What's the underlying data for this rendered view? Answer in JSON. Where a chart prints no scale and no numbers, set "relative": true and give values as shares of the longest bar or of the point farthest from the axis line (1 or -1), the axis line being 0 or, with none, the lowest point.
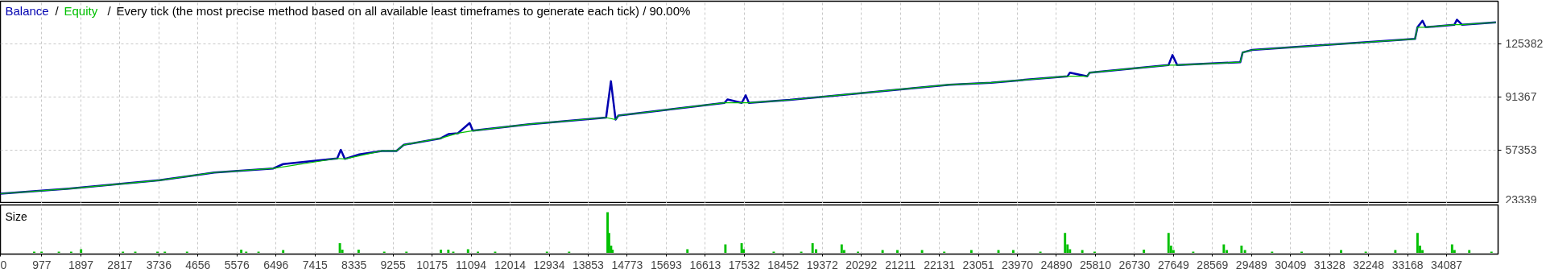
{
  "chart_data": [
    {
      "type": "line",
      "title": "Every tick (the most precise method based on all available least timeframes to generate each tick) / 90.00%",
      "annotations": [
        "/",
        "/"
      ],
      "legend": "top left",
      "grid": true,
      "tick_labels": "y",
      "xlim": [
        0,
        35300
      ],
      "ylim": [
        23339,
        152400
      ],
      "yticks": [
        23339,
        57353,
        91367,
        125382
      ],
      "xticks": [
        0,
        977,
        1897,
        2817,
        3736,
        4656,
        5576,
        6496,
        7415,
        8335,
        9255,
        10175,
        11094,
        12014,
        12934,
        13853,
        14773,
        15693,
        16613,
        17532,
        18452,
        19372,
        20292,
        21211,
        22131,
        23051,
        23970,
        24890,
        25810,
        26730,
        27649,
        28569,
        29489,
        30409,
        31328,
        32248,
        33168,
        34087
      ],
      "series": [
        {
          "name": "Balance",
          "color": "#0000b0",
          "x": [
            0,
            1617,
            3755,
            5038,
            6432,
            6664,
            7938,
            8024,
            8117,
            8458,
            8988,
            9333,
            9510,
            10382,
            10559,
            10783,
            11060,
            11135,
            12474,
            14276,
            14390,
            14500,
            14566,
            17066,
            17140,
            17474,
            17567,
            17641,
            18608,
            22364,
            23350,
            25153,
            25209,
            25617,
            25673,
            27532,
            27625,
            27737,
            29224,
            29280,
            29503,
            33342,
            33400,
            33519,
            33593,
            34271,
            34329,
            34448,
            35250
          ],
          "values": [
            29500,
            32700,
            38100,
            43000,
            45600,
            48400,
            52000,
            57500,
            51700,
            54600,
            56800,
            56800,
            60700,
            64900,
            67500,
            68100,
            74600,
            69700,
            73900,
            78100,
            101300,
            76800,
            79400,
            87500,
            89700,
            87500,
            92300,
            87500,
            89400,
            99100,
            100400,
            104500,
            106800,
            104500,
            106800,
            111600,
            118000,
            111600,
            113500,
            119700,
            121300,
            128300,
            135800,
            139900,
            135800,
            137400,
            140600,
            137400,
            138900
          ]
        },
        {
          "name": "Equity",
          "color": "#00c000",
          "x": [
            0,
            1617,
            3755,
            5038,
            6432,
            7938,
            8117,
            8988,
            9333,
            9510,
            10382,
            10783,
            11135,
            12474,
            14276,
            14500,
            14566,
            17066,
            17474,
            17641,
            18608,
            22364,
            23350,
            25153,
            25617,
            25673,
            27532,
            27737,
            29224,
            29280,
            29503,
            33342,
            33400,
            33593,
            34271,
            34448,
            35250
          ],
          "values": [
            29500,
            32700,
            38100,
            43000,
            45600,
            52000,
            51700,
            56800,
            56800,
            60700,
            64900,
            68100,
            69700,
            73900,
            78100,
            76800,
            79400,
            87500,
            87500,
            87500,
            89400,
            99100,
            100400,
            104500,
            104500,
            106800,
            111600,
            111600,
            113500,
            119700,
            121300,
            128300,
            135800,
            135800,
            137400,
            137400,
            138900
          ]
        }
      ]
    },
    {
      "type": "bar",
      "title": "Size",
      "relative": true,
      "grid": "x",
      "tick_labels": "x",
      "color": "#00c000",
      "xlim": [
        0,
        35300
      ],
      "xticks": [
        0,
        977,
        1897,
        2817,
        3736,
        4656,
        5576,
        6496,
        7415,
        8335,
        9255,
        10175,
        11094,
        12014,
        12934,
        13853,
        14773,
        15693,
        16613,
        17532,
        18452,
        19372,
        20292,
        21211,
        22131,
        23051,
        23970,
        24890,
        25810,
        26730,
        27649,
        28569,
        29489,
        30409,
        31328,
        32248,
        33168,
        34087
      ],
      "x": [
        797,
        971,
        1378,
        1668,
        1901,
        2888,
        3179,
        3702,
        3876,
        4399,
        5677,
        5793,
        6084,
        6665,
        8001,
        8059,
        8443,
        9047,
        9570,
        10383,
        10558,
        10674,
        11022,
        11255,
        11661,
        12882,
        13404,
        14311,
        14346,
        14393,
        14428,
        16193,
        17088,
        17471,
        17518,
        18227,
        18876,
        19143,
        19225,
        19829,
        19887,
        20213,
        20793,
        21142,
        21723,
        22246,
        22885,
        23524,
        23873,
        24512,
        25093,
        25151,
        25209,
        25500,
        25790,
        26952,
        27533,
        27591,
        27649,
        28114,
        28835,
        28905,
        29253,
        29334,
        29973,
        30670,
        31600,
        32181,
        32878,
        33401,
        33459,
        33517,
        34215,
        34272,
        34621,
        35144
      ],
      "values": [
        0.03,
        0.03,
        0.03,
        0.03,
        0.09,
        0.03,
        0.03,
        0.03,
        0.03,
        0.03,
        0.08,
        0.03,
        0.03,
        0.07,
        0.24,
        0.08,
        0.08,
        0.03,
        0.03,
        0.08,
        0.08,
        0.03,
        0.09,
        0.03,
        0.03,
        0.03,
        0.03,
        1.0,
        0.49,
        0.18,
        0.08,
        0.09,
        0.21,
        0.24,
        0.09,
        0.03,
        0.03,
        0.24,
        0.09,
        0.21,
        0.07,
        0.03,
        0.07,
        0.07,
        0.07,
        0.03,
        0.07,
        0.07,
        0.07,
        0.03,
        0.49,
        0.21,
        0.09,
        0.07,
        0.03,
        0.08,
        0.49,
        0.18,
        0.07,
        0.03,
        0.21,
        0.07,
        0.18,
        0.07,
        0.03,
        0.03,
        0.07,
        0.03,
        0.07,
        0.49,
        0.18,
        0.07,
        0.21,
        0.07,
        0.07,
        0.03
      ]
    }
  ]
}
